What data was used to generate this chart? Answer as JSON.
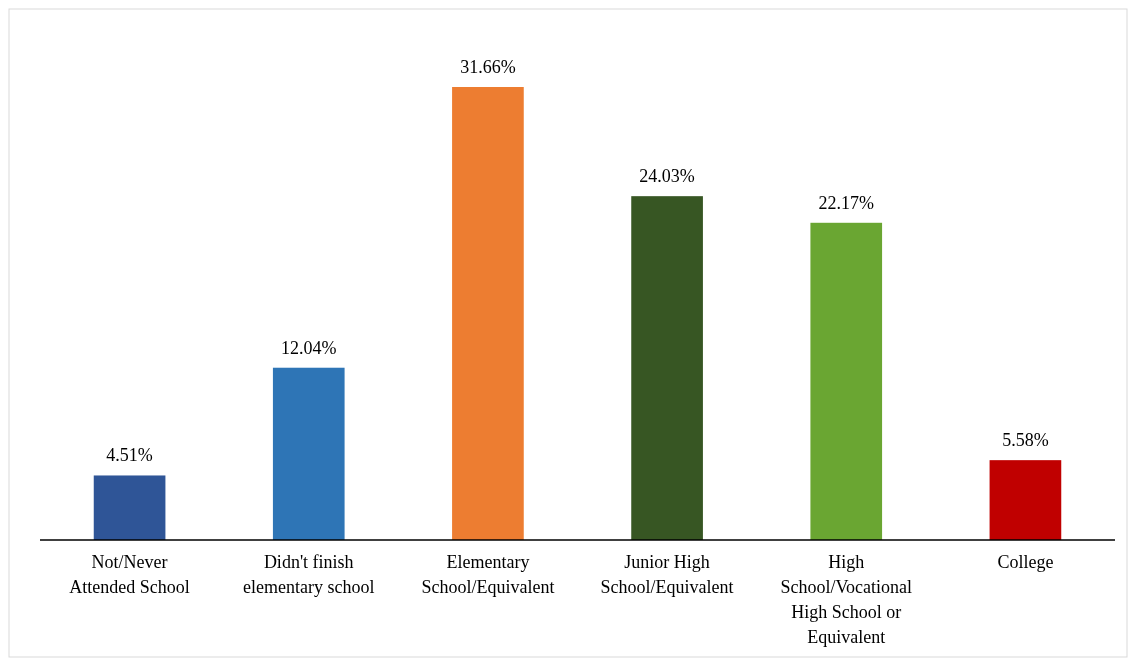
{
  "chart_data": {
    "type": "bar",
    "categories": [
      "Not/Never Attended School",
      "Didn't finish elementary school",
      "Elementary School/Equivalent",
      "Junior High School/Equivalent",
      "High School/Vocational High School or Equivalent",
      "College"
    ],
    "values": [
      4.51,
      12.04,
      31.66,
      24.03,
      22.17,
      5.58
    ],
    "colors": [
      "#2f5597",
      "#2e75b6",
      "#ed7d31",
      "#375623",
      "#6aa632",
      "#c00000"
    ],
    "value_labels": [
      "4.51%",
      "12.04%",
      "31.66%",
      "24.03%",
      "22.17%",
      "5.58%"
    ]
  }
}
